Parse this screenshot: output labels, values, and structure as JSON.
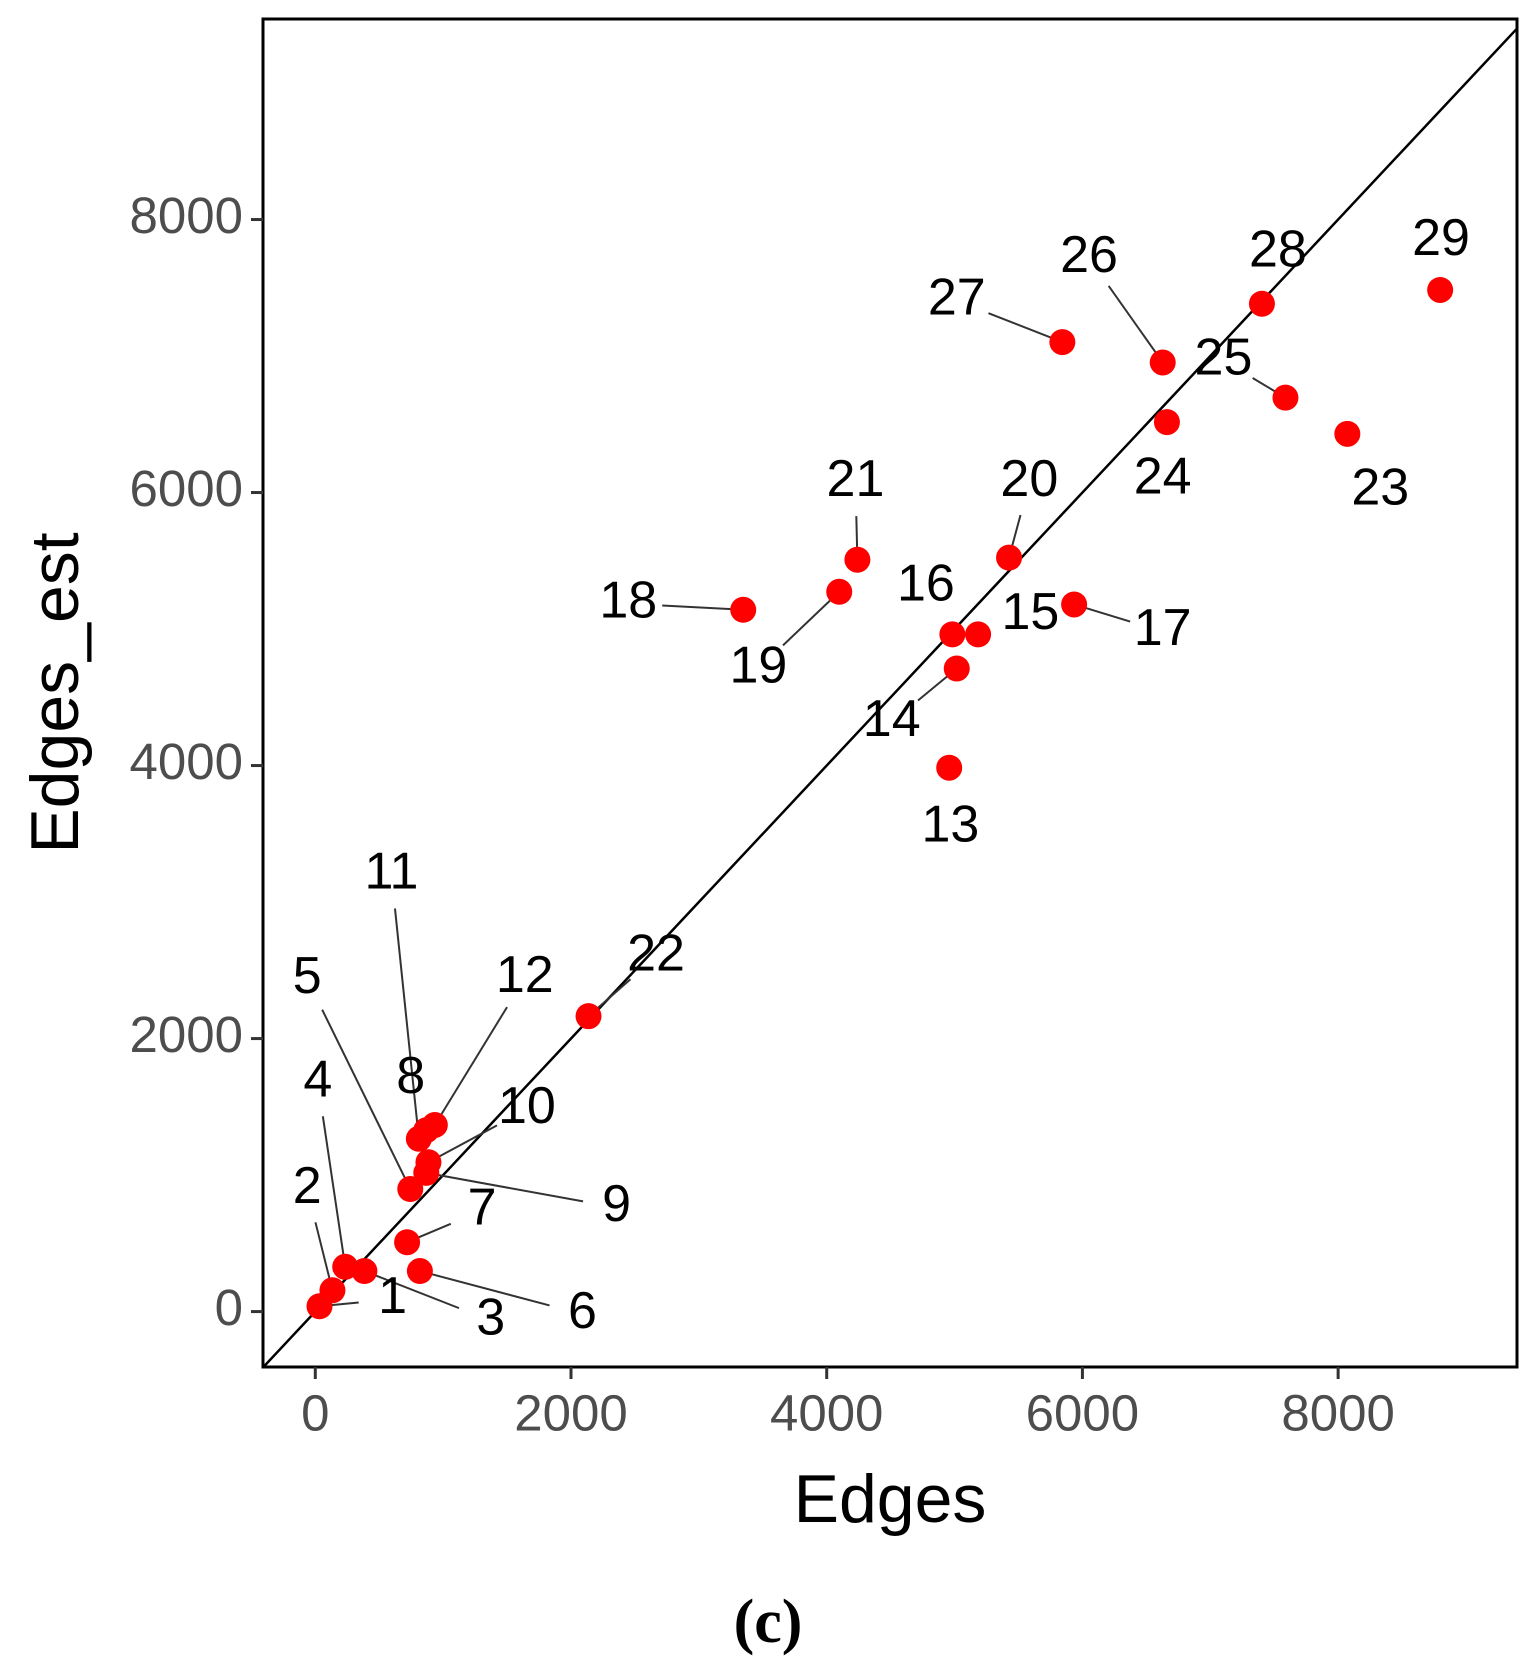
{
  "chart_data": {
    "type": "scatter",
    "x_label": "Edges",
    "y_label": "Edges_est",
    "caption": "(c)",
    "labels": [
      "1",
      "2",
      "3",
      "4",
      "5",
      "6",
      "7",
      "8",
      "9",
      "10",
      "11",
      "12",
      "13",
      "14",
      "15",
      "16",
      "17",
      "18",
      "19",
      "20",
      "21",
      "22",
      "23",
      "24",
      "25",
      "26",
      "27",
      "28",
      "29"
    ],
    "x": [
      33,
      134,
      384,
      234,
      743,
      818,
      718,
      868,
      868,
      885,
      810,
      935,
      4958,
      5017,
      5184,
      4983,
      5935,
      3347,
      4098,
      5426,
      4240,
      2137,
      8072,
      6661,
      7588,
      6628,
      5843,
      7404,
      8798
    ],
    "y": [
      39,
      156,
      297,
      328,
      898,
      297,
      508,
      1328,
      1016,
      1094,
      1266,
      1367,
      3984,
      4711,
      4961,
      4961,
      5180,
      5141,
      5273,
      5523,
      5508,
      2164,
      6430,
      6516,
      6695,
      6953,
      7102,
      7383,
      7484
    ],
    "color": "#ff0000",
    "xlim": [
      -409,
      9399
    ],
    "ylim": [
      -406,
      9469
    ],
    "xticks": [
      0,
      2000,
      4000,
      6000,
      8000
    ],
    "yticks": [
      0,
      2000,
      4000,
      6000,
      8000
    ],
    "grid": false
  }
}
